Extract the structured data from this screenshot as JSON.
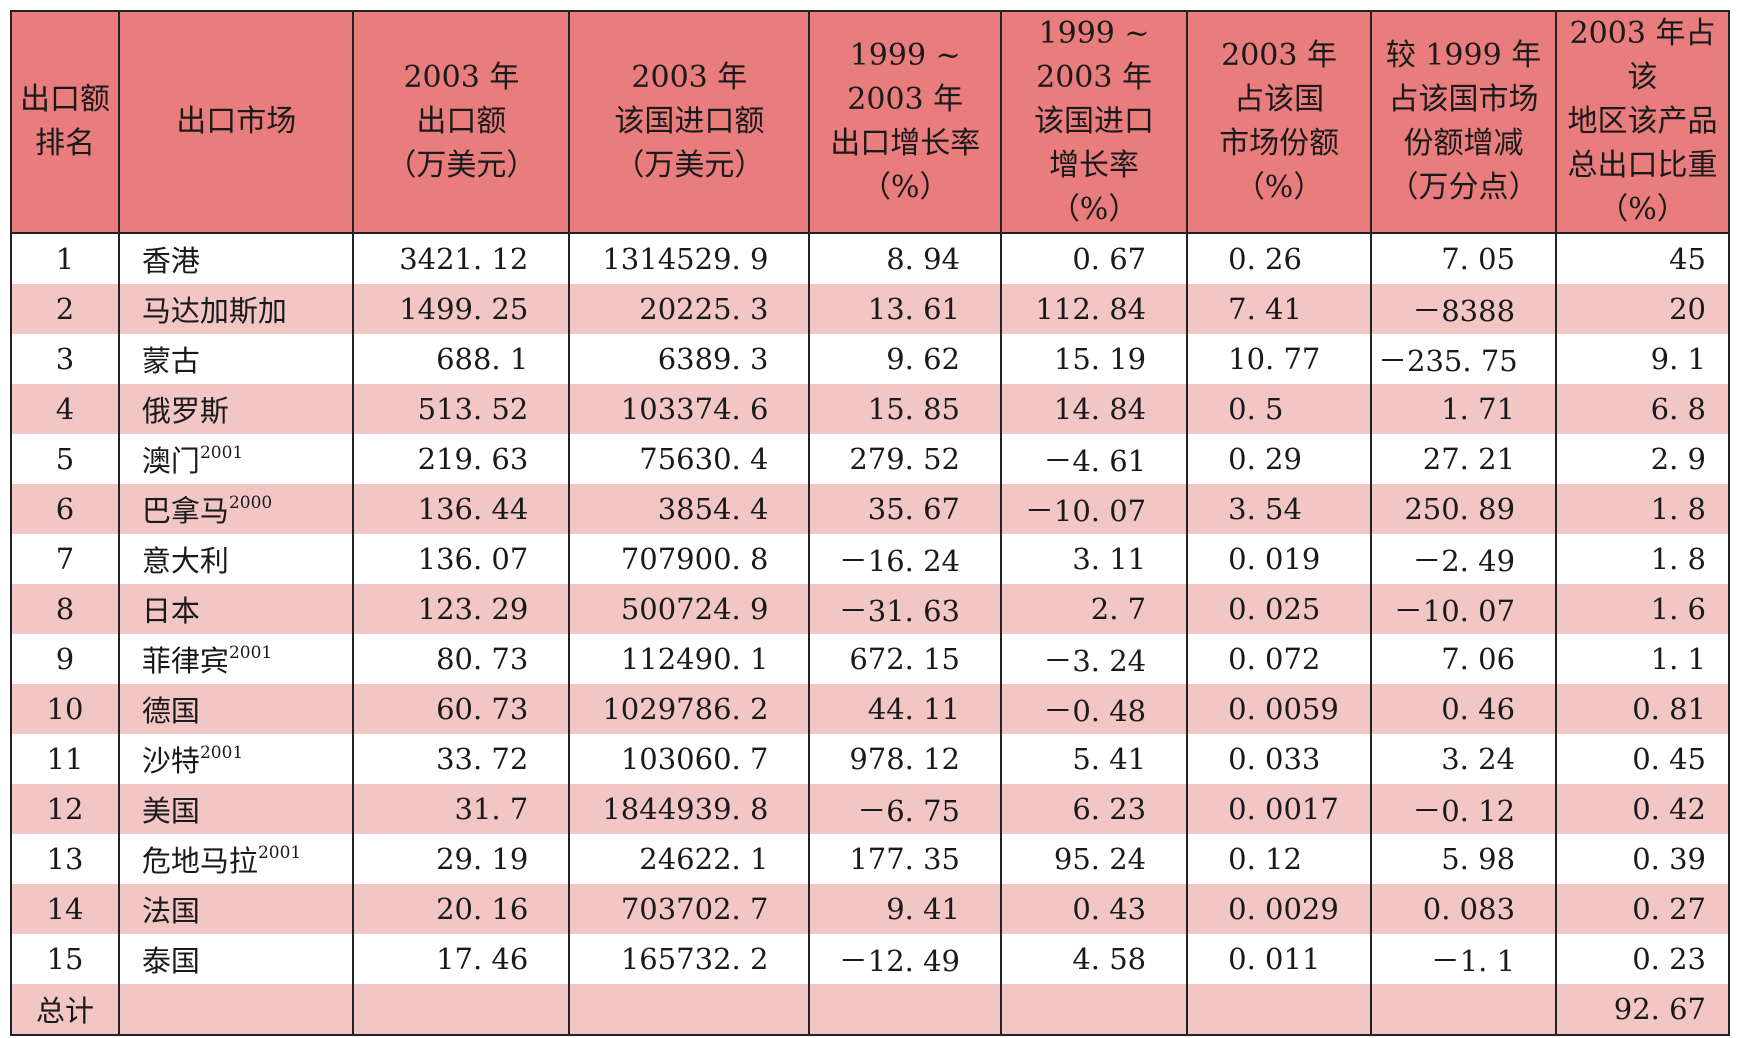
{
  "headers": [
    {
      "lines": [
        "出口额",
        "排名"
      ]
    },
    {
      "lines": [
        "出口市场"
      ]
    },
    {
      "lines": [
        "2003 年",
        "出口额",
        "（万美元）"
      ]
    },
    {
      "lines": [
        "2003 年",
        "该国进口额",
        "（万美元）"
      ]
    },
    {
      "lines": [
        "1999 ~ 2003 年",
        "出口增长率",
        "（%）"
      ]
    },
    {
      "lines": [
        "1999 ~ 2003 年",
        "该国进口",
        "增长率",
        "（%）"
      ]
    },
    {
      "lines": [
        "2003 年",
        "占该国",
        "市场份额",
        "（%）"
      ]
    },
    {
      "lines": [
        "较 1999 年",
        "占该国市场",
        "份额增减",
        "（万分点）"
      ]
    },
    {
      "lines": [
        "2003 年占该",
        "地区该产品",
        "总出口比重",
        "（%）"
      ]
    }
  ],
  "rows": [
    {
      "rank": "1",
      "market": "香港",
      "sup": "",
      "export_2003": "3421. 12",
      "import_2003": "1314529. 9",
      "export_growth": "8. 94",
      "import_growth": "0. 67",
      "market_share": "0. 26",
      "share_change": "7. 05",
      "export_weight": "45"
    },
    {
      "rank": "2",
      "market": "马达加斯加",
      "sup": "",
      "export_2003": "1499. 25",
      "import_2003": "20225. 3",
      "export_growth": "13. 61",
      "import_growth": "112. 84",
      "market_share": "7. 41",
      "share_change": "－8388",
      "export_weight": "20"
    },
    {
      "rank": "3",
      "market": "蒙古",
      "sup": "",
      "export_2003": "688. 1",
      "import_2003": "6389. 3",
      "export_growth": "9. 62",
      "import_growth": "15. 19",
      "market_share": "10. 77",
      "share_change": "－235. 75",
      "export_weight": "9. 1"
    },
    {
      "rank": "4",
      "market": "俄罗斯",
      "sup": "",
      "export_2003": "513. 52",
      "import_2003": "103374. 6",
      "export_growth": "15. 85",
      "import_growth": "14. 84",
      "market_share": "0. 5",
      "share_change": "1. 71",
      "export_weight": "6. 8"
    },
    {
      "rank": "5",
      "market": "澳门",
      "sup": "2001",
      "export_2003": "219. 63",
      "import_2003": "75630. 4",
      "export_growth": "279. 52",
      "import_growth": "－4. 61",
      "market_share": "0. 29",
      "share_change": "27. 21",
      "export_weight": "2. 9"
    },
    {
      "rank": "6",
      "market": "巴拿马",
      "sup": "2000",
      "export_2003": "136. 44",
      "import_2003": "3854. 4",
      "export_growth": "35. 67",
      "import_growth": "－10. 07",
      "market_share": "3. 54",
      "share_change": "250. 89",
      "export_weight": "1. 8"
    },
    {
      "rank": "7",
      "market": "意大利",
      "sup": "",
      "export_2003": "136. 07",
      "import_2003": "707900. 8",
      "export_growth": "－16. 24",
      "import_growth": "3. 11",
      "market_share": "0. 019",
      "share_change": "－2. 49",
      "export_weight": "1. 8"
    },
    {
      "rank": "8",
      "market": "日本",
      "sup": "",
      "export_2003": "123. 29",
      "import_2003": "500724. 9",
      "export_growth": "－31. 63",
      "import_growth": "2. 7",
      "market_share": "0. 025",
      "share_change": "－10. 07",
      "export_weight": "1. 6"
    },
    {
      "rank": "9",
      "market": "菲律宾",
      "sup": "2001",
      "export_2003": "80. 73",
      "import_2003": "112490. 1",
      "export_growth": "672. 15",
      "import_growth": "－3. 24",
      "market_share": "0. 072",
      "share_change": "7. 06",
      "export_weight": "1. 1"
    },
    {
      "rank": "10",
      "market": "德国",
      "sup": "",
      "export_2003": "60. 73",
      "import_2003": "1029786. 2",
      "export_growth": "44. 11",
      "import_growth": "－0. 48",
      "market_share": "0. 0059",
      "share_change": "0. 46",
      "export_weight": "0. 81"
    },
    {
      "rank": "11",
      "market": "沙特",
      "sup": "2001",
      "export_2003": "33. 72",
      "import_2003": "103060. 7",
      "export_growth": "978. 12",
      "import_growth": "5. 41",
      "market_share": "0. 033",
      "share_change": "3. 24",
      "export_weight": "0. 45"
    },
    {
      "rank": "12",
      "market": "美国",
      "sup": "",
      "export_2003": "31. 7",
      "import_2003": "1844939. 8",
      "export_growth": "－6. 75",
      "import_growth": "6. 23",
      "market_share": "0. 0017",
      "share_change": "－0. 12",
      "export_weight": "0. 42"
    },
    {
      "rank": "13",
      "market": "危地马拉",
      "sup": "2001",
      "export_2003": "29. 19",
      "import_2003": "24622. 1",
      "export_growth": "177. 35",
      "import_growth": "95. 24",
      "market_share": "0. 12",
      "share_change": "5. 98",
      "export_weight": "0. 39"
    },
    {
      "rank": "14",
      "market": "法国",
      "sup": "",
      "export_2003": "20. 16",
      "import_2003": "703702. 7",
      "export_growth": "9. 41",
      "import_growth": "0. 43",
      "market_share": "0. 0029",
      "share_change": "0. 083",
      "export_weight": "0. 27"
    },
    {
      "rank": "15",
      "market": "泰国",
      "sup": "",
      "export_2003": "17. 46",
      "import_2003": "165732. 2",
      "export_growth": "－12. 49",
      "import_growth": "4. 58",
      "market_share": "0. 011",
      "share_change": "－1. 1",
      "export_weight": "0. 23"
    }
  ],
  "total": {
    "label": "总计",
    "export_weight": "92. 67"
  },
  "colors": {
    "header_bg": "#e97c7c",
    "stripe_bg": "#f3c6c6",
    "line": "#222222"
  }
}
